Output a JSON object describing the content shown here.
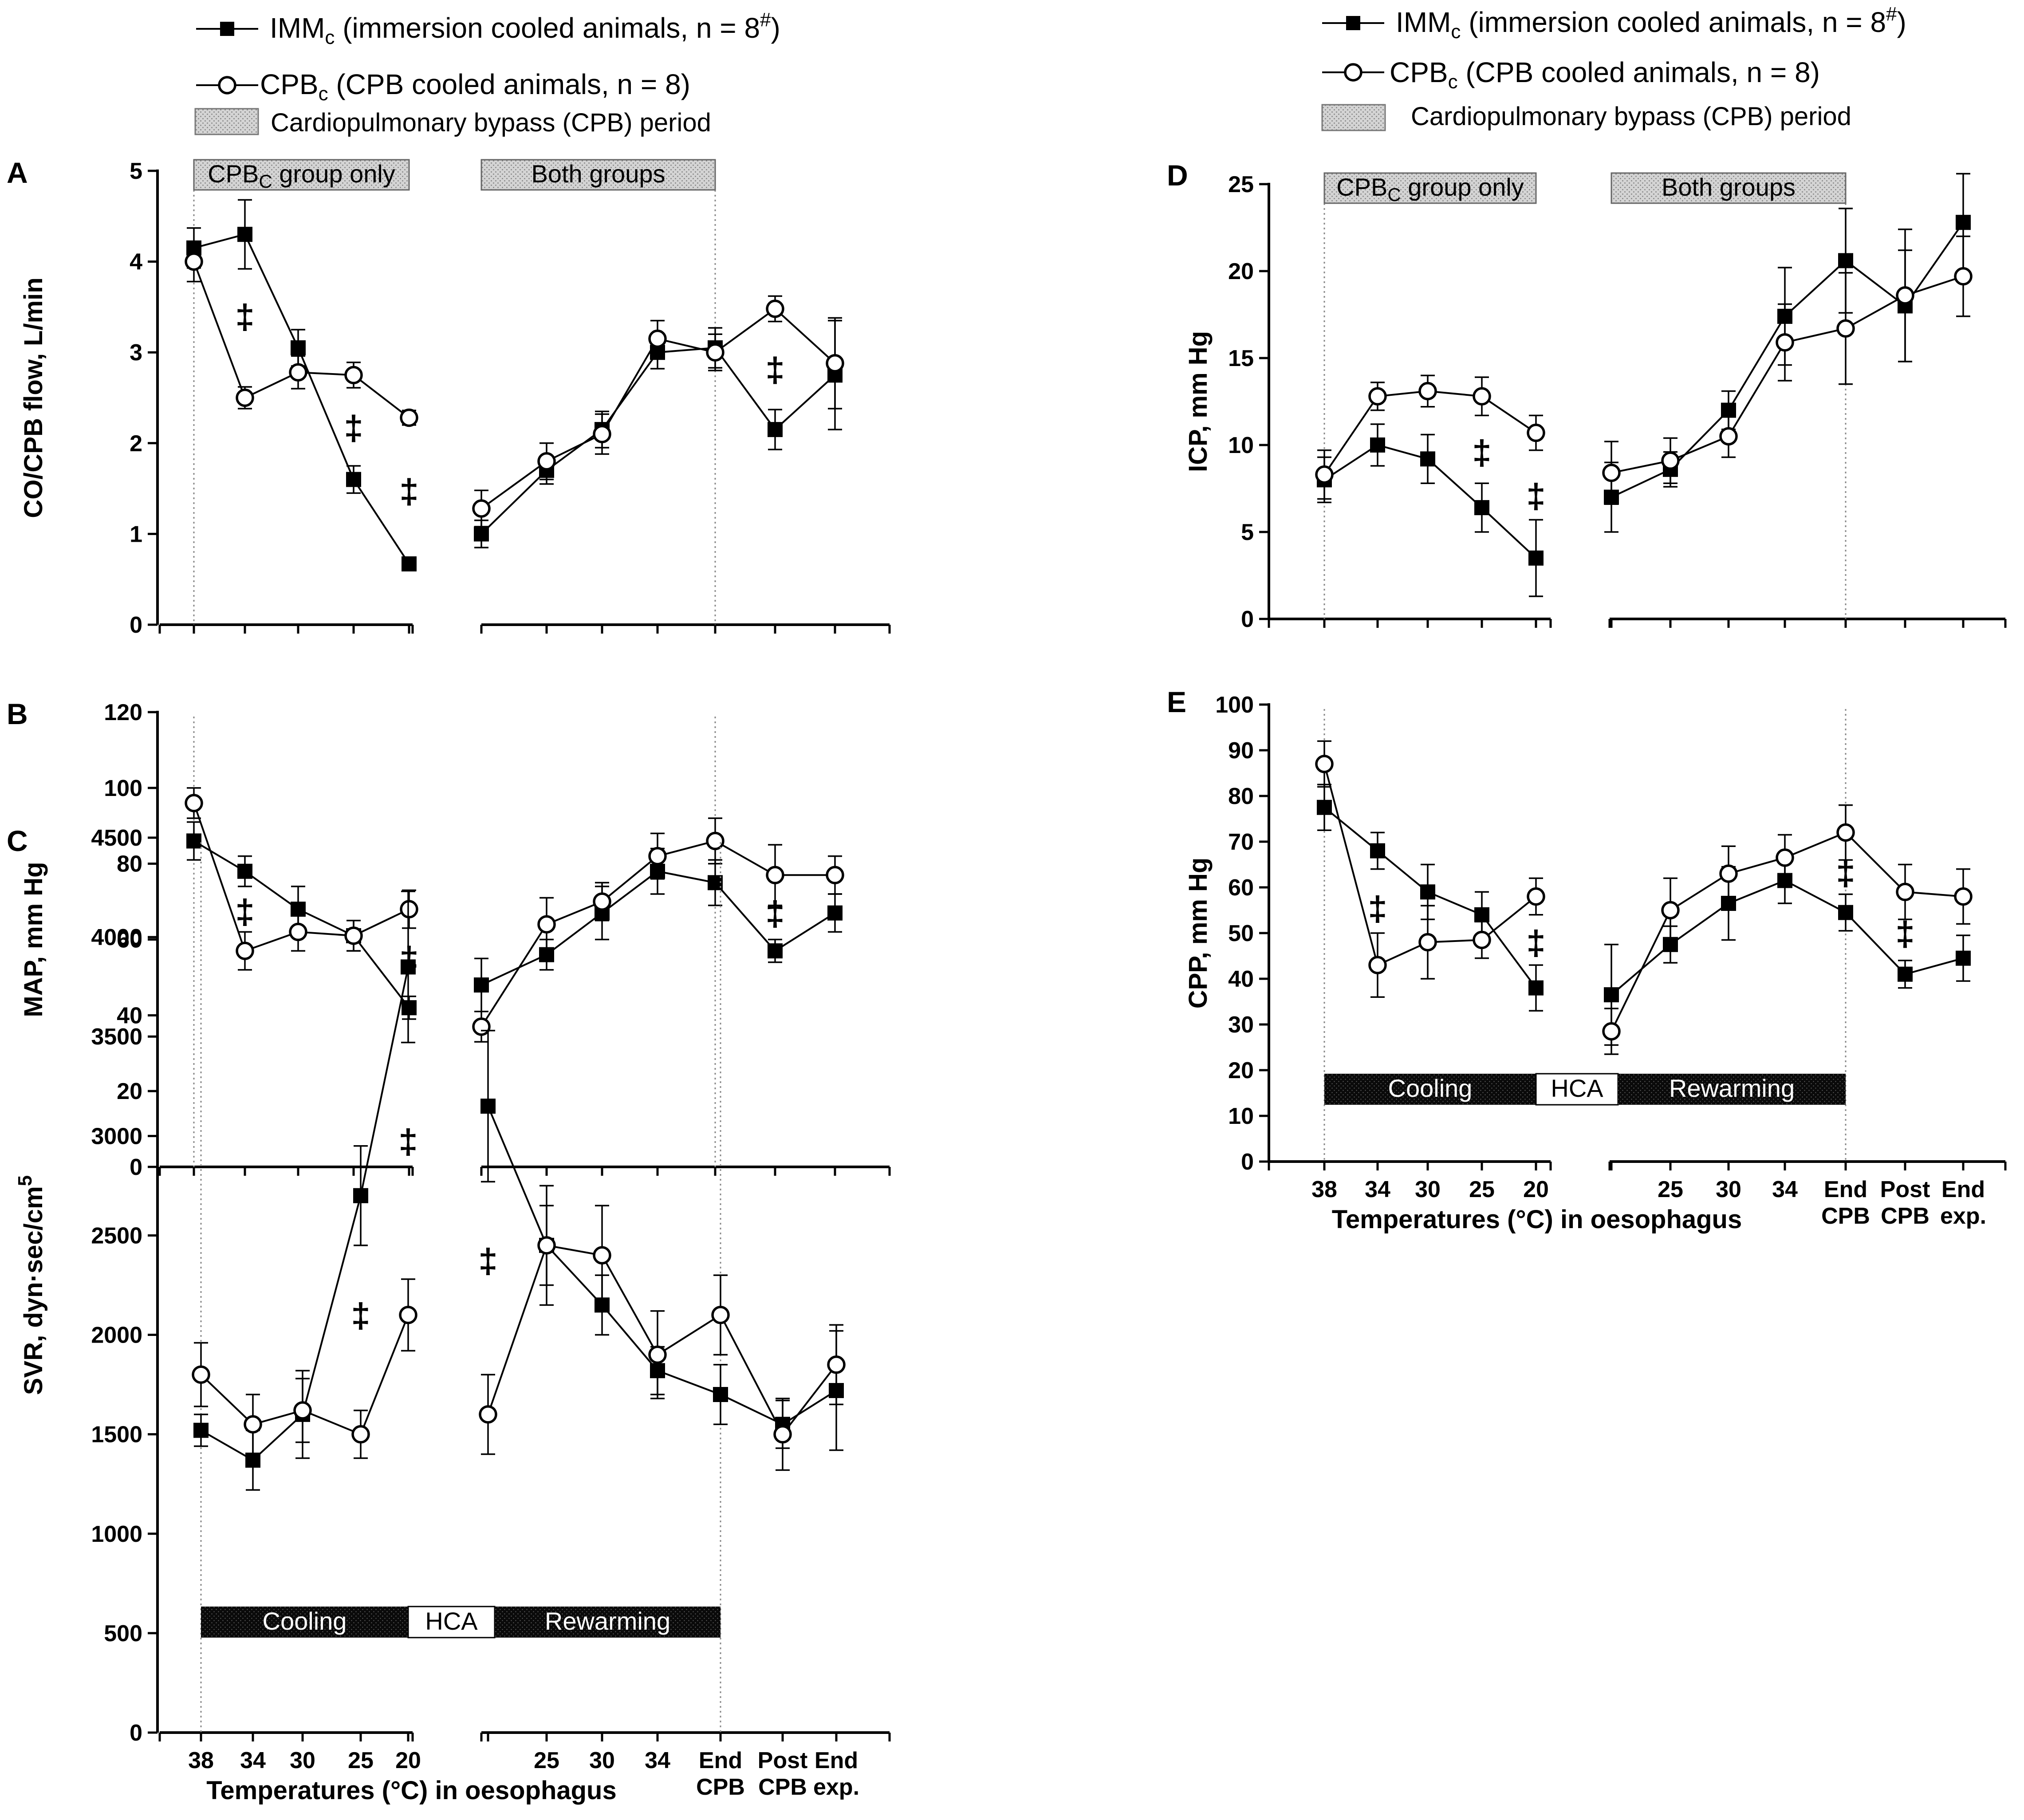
{
  "legends": [
    {
      "imm_label": "IMM",
      "imm_sub": "c",
      "imm_rest": " (immersion cooled animals, n = 8",
      "imm_sup": "#",
      "imm_close": ")",
      "cpb_label": "CPB",
      "cpb_sub": "c",
      "cpb_rest": " (CPB cooled animals, n = 8)",
      "period_label": "Cardiopulmonary bypass (CPB) period"
    },
    {
      "imm_label": "IMM",
      "imm_sub": "c",
      "imm_rest": " (immersion cooled animals, n = 8",
      "imm_sup": "#",
      "imm_close": ")",
      "cpb_label": "CPB",
      "cpb_sub": "c",
      "cpb_rest": " (CPB cooled animals, n = 8)",
      "period_label": "Cardiopulmonary bypass (CPB) period"
    }
  ],
  "bands": {
    "cpb_only_main": "CPB",
    "cpb_only_sub": "C",
    "cpb_only_rest": " group only",
    "both": "Both groups",
    "cooling": "Cooling",
    "hca": "HCA",
    "rewarming": "Rewarming"
  },
  "x_axis": {
    "title": "Temperatures (°C) in oesophagus",
    "ticks": [
      {
        "l1": "38",
        "l2": ""
      },
      {
        "l1": "34",
        "l2": ""
      },
      {
        "l1": "30",
        "l2": ""
      },
      {
        "l1": "25",
        "l2": ""
      },
      {
        "l1": "20",
        "l2": ""
      },
      {
        "l1": "",
        "l2": ""
      },
      {
        "l1": "25",
        "l2": ""
      },
      {
        "l1": "30",
        "l2": ""
      },
      {
        "l1": "34",
        "l2": ""
      },
      {
        "l1": "End",
        "l2": "CPB"
      },
      {
        "l1": "Post",
        "l2": "CPB"
      },
      {
        "l1": "End",
        "l2": "exp."
      }
    ]
  },
  "chart_data": [
    {
      "panel": "A",
      "type": "line",
      "ylabel": "CO/CPB flow, L/min",
      "ylim": [
        0,
        5
      ],
      "yticks": [
        0,
        1,
        2,
        3,
        4,
        5
      ],
      "show_cpb_only_band": true,
      "show_both_band": true,
      "show_phase_band": false,
      "series": [
        {
          "name": "IMMc",
          "marker": "square",
          "values": [
            4.15,
            4.3,
            3.05,
            1.6,
            0.67,
            1.0,
            1.7,
            2.15,
            3.0,
            3.05,
            2.15,
            2.75
          ],
          "errors": [
            0.22,
            0.38,
            0.2,
            0.15,
            0.06,
            0.15,
            0.15,
            0.2,
            0.18,
            0.22,
            0.22,
            0.6
          ]
        },
        {
          "name": "CPBc",
          "marker": "circle",
          "values": [
            4.0,
            2.5,
            2.78,
            2.75,
            2.28,
            1.28,
            1.8,
            2.1,
            3.15,
            3.0,
            3.48,
            2.88
          ],
          "errors": [
            0.22,
            0.12,
            0.18,
            0.14,
            0.08,
            0.2,
            0.2,
            0.22,
            0.2,
            0.2,
            0.14,
            0.5
          ]
        }
      ],
      "significance": [
        1,
        3,
        4,
        10
      ],
      "significance_label": "‡"
    },
    {
      "panel": "B",
      "type": "line",
      "ylabel": "MAP, mm Hg",
      "ylim": [
        0,
        120
      ],
      "yticks": [
        0,
        20,
        40,
        60,
        80,
        100,
        120
      ],
      "show_cpb_only_band": false,
      "show_both_band": false,
      "show_phase_band": false,
      "series": [
        {
          "name": "IMMc",
          "marker": "square",
          "values": [
            86,
            78,
            68,
            61,
            42,
            48,
            56,
            67,
            78,
            75,
            57,
            67
          ],
          "errors": [
            5,
            4,
            6,
            4,
            3,
            7,
            4,
            7,
            6,
            6,
            3,
            5
          ]
        },
        {
          "name": "CPBc",
          "marker": "circle",
          "values": [
            96,
            57,
            62,
            61,
            68,
            37,
            64,
            70,
            82,
            86,
            77,
            77
          ],
          "errors": [
            4,
            5,
            5,
            4,
            5,
            4,
            7,
            5,
            6,
            6,
            8,
            5
          ]
        }
      ],
      "significance": [
        1,
        4,
        10
      ],
      "significance_label": "‡"
    },
    {
      "panel": "C",
      "type": "line",
      "ylabel": "SVR, dyn·sec/cm",
      "ylabel_sup": "5",
      "ylim": [
        0,
        4500
      ],
      "yticks": [
        0,
        500,
        1000,
        1500,
        2000,
        2500,
        3000,
        3500,
        4000,
        4500
      ],
      "show_cpb_only_band": false,
      "show_both_band": false,
      "show_phase_band": true,
      "show_x_labels": true,
      "series": [
        {
          "name": "IMMc",
          "marker": "square",
          "values": [
            1520,
            1370,
            1600,
            2700,
            3850,
            3150,
            2450,
            2150,
            1820,
            1700,
            1550,
            1720
          ],
          "errors": [
            80,
            150,
            220,
            250,
            380,
            380,
            200,
            150,
            120,
            150,
            120,
            300
          ]
        },
        {
          "name": "CPBc",
          "marker": "circle",
          "values": [
            1800,
            1550,
            1620,
            1500,
            2100,
            1600,
            2450,
            2400,
            1900,
            2100,
            1500,
            1850
          ],
          "errors": [
            160,
            150,
            160,
            120,
            180,
            200,
            300,
            250,
            220,
            200,
            180,
            200
          ]
        }
      ],
      "significance": [
        3,
        4,
        5
      ],
      "significance_label": "‡"
    },
    {
      "panel": "D",
      "type": "line",
      "ylabel": "ICP, mm Hg",
      "ylim": [
        0,
        25
      ],
      "yticks": [
        0,
        5,
        10,
        15,
        20,
        25
      ],
      "show_cpb_only_band": true,
      "show_both_band": true,
      "show_phase_band": false,
      "series": [
        {
          "name": "IMMc",
          "marker": "square",
          "values": [
            8.0,
            10.0,
            9.2,
            6.4,
            3.5,
            7.0,
            8.6,
            12.0,
            17.4,
            20.6,
            18.0,
            22.8
          ],
          "errors": [
            1.3,
            1.2,
            1.4,
            1.4,
            2.2,
            2.0,
            1.0,
            1.1,
            2.8,
            3.0,
            3.2,
            2.8
          ]
        },
        {
          "name": "CPBc",
          "marker": "circle",
          "values": [
            8.3,
            12.8,
            13.1,
            12.8,
            10.7,
            8.4,
            9.1,
            10.5,
            15.9,
            16.7,
            18.6,
            19.7
          ],
          "errors": [
            1.4,
            0.8,
            0.9,
            1.1,
            1.0,
            1.8,
            1.3,
            1.2,
            2.2,
            3.2,
            3.8,
            2.3
          ]
        }
      ],
      "significance": [
        3,
        4
      ],
      "significance_label": "‡"
    },
    {
      "panel": "E",
      "type": "line",
      "ylabel": "CPP, mm Hg",
      "ylim": [
        0,
        100
      ],
      "yticks": [
        0,
        10,
        20,
        30,
        40,
        50,
        60,
        70,
        80,
        90,
        100
      ],
      "show_cpb_only_band": false,
      "show_both_band": false,
      "show_phase_band": true,
      "show_x_labels": true,
      "series": [
        {
          "name": "IMMc",
          "marker": "square",
          "values": [
            77.5,
            68,
            59,
            54,
            38,
            36.5,
            47.5,
            56.5,
            61.5,
            54.5,
            41,
            44.5
          ],
          "errors": [
            5,
            4,
            6,
            5,
            5,
            11,
            4,
            8,
            5,
            4,
            3,
            5
          ]
        },
        {
          "name": "CPBc",
          "marker": "circle",
          "values": [
            87,
            43,
            48,
            48.5,
            58,
            28.5,
            55,
            63,
            66.5,
            72,
            59,
            58
          ],
          "errors": [
            5,
            7,
            8,
            4,
            4,
            5,
            7,
            6,
            5,
            6,
            6,
            6
          ]
        }
      ],
      "significance": [
        1,
        4,
        9,
        10
      ],
      "significance_label": "‡"
    }
  ]
}
